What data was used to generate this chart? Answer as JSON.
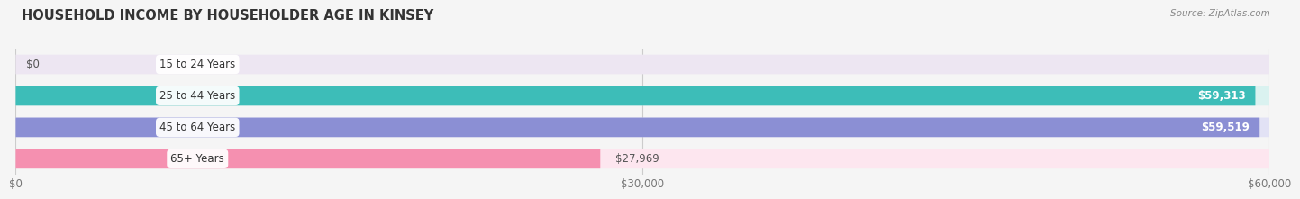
{
  "title": "HOUSEHOLD INCOME BY HOUSEHOLDER AGE IN KINSEY",
  "source": "Source: ZipAtlas.com",
  "categories": [
    "15 to 24 Years",
    "25 to 44 Years",
    "45 to 64 Years",
    "65+ Years"
  ],
  "values": [
    0,
    59313,
    59519,
    27969
  ],
  "bar_colors": [
    "#c9a8d4",
    "#3dbdb8",
    "#8b8fd4",
    "#f590b0"
  ],
  "bar_bg_colors": [
    "#ede6f2",
    "#daf2f0",
    "#e2e2f5",
    "#fde6ef"
  ],
  "value_labels": [
    "$0",
    "$59,313",
    "$59,519",
    "$27,969"
  ],
  "x_ticks": [
    0,
    30000,
    60000
  ],
  "x_tick_labels": [
    "$0",
    "$30,000",
    "$60,000"
  ],
  "xlim": [
    0,
    60000
  ],
  "background_color": "#f5f5f5",
  "title_fontsize": 10.5,
  "label_fontsize": 8.5,
  "value_fontsize": 8.5
}
